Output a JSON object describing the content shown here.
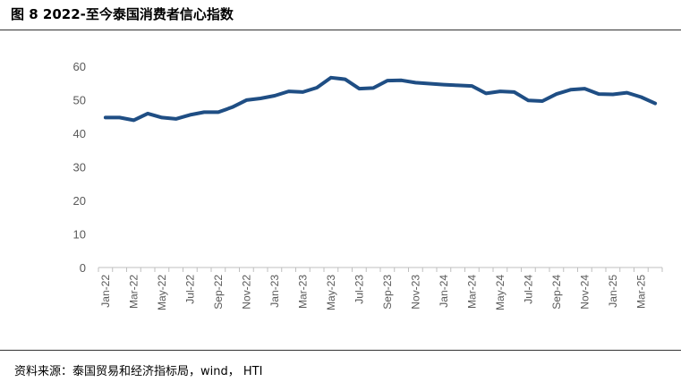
{
  "figure": {
    "title": "图 8  2022-至今泰国消费者信心指数",
    "source": "资料来源：泰国贸易和经济指标局，wind，  HTI"
  },
  "chart_data": {
    "type": "line",
    "title": "",
    "xlabel": "",
    "ylabel": "",
    "ylim": [
      0,
      60
    ],
    "yticks": [
      0,
      10,
      20,
      30,
      40,
      50,
      60
    ],
    "grid": false,
    "legend": "none",
    "line_color": "#1f4e84",
    "x": [
      "Jan-22",
      "Feb-22",
      "Mar-22",
      "Apr-22",
      "May-22",
      "Jun-22",
      "Jul-22",
      "Aug-22",
      "Sep-22",
      "Oct-22",
      "Nov-22",
      "Dec-22",
      "Jan-23",
      "Feb-23",
      "Mar-23",
      "Apr-23",
      "May-23",
      "Jun-23",
      "Jul-23",
      "Aug-23",
      "Sep-23",
      "Oct-23",
      "Nov-23",
      "Dec-23",
      "Jan-24",
      "Feb-24",
      "Mar-24",
      "Apr-24",
      "May-24",
      "Jun-24",
      "Jul-24",
      "Aug-24",
      "Sep-24",
      "Oct-24",
      "Nov-24",
      "Dec-24",
      "Jan-25",
      "Feb-25",
      "Mar-25",
      "Apr-25"
    ],
    "x_tick_labels": [
      "Jan-22",
      "Mar-22",
      "May-22",
      "Jul-22",
      "Sep-22",
      "Nov-22",
      "Jan-23",
      "Mar-23",
      "May-23",
      "Jul-23",
      "Sep-23",
      "Nov-23",
      "Jan-24",
      "Mar-24",
      "May-24",
      "Jul-24",
      "Sep-24",
      "Nov-24",
      "Jan-25",
      "Mar-25"
    ],
    "series": [
      {
        "values": [
          44.7,
          44.7,
          43.9,
          45.9,
          44.7,
          44.3,
          45.5,
          46.3,
          46.3,
          47.8,
          49.9,
          50.4,
          51.2,
          52.5,
          52.3,
          53.6,
          56.6,
          56.1,
          53.3,
          53.5,
          55.7,
          55.8,
          55.1,
          54.8,
          54.5,
          54.3,
          54.1,
          51.9,
          52.5,
          52.3,
          49.8,
          49.6,
          51.7,
          53.0,
          53.3,
          51.7,
          51.6,
          52.1,
          50.8,
          48.9
        ]
      }
    ]
  }
}
